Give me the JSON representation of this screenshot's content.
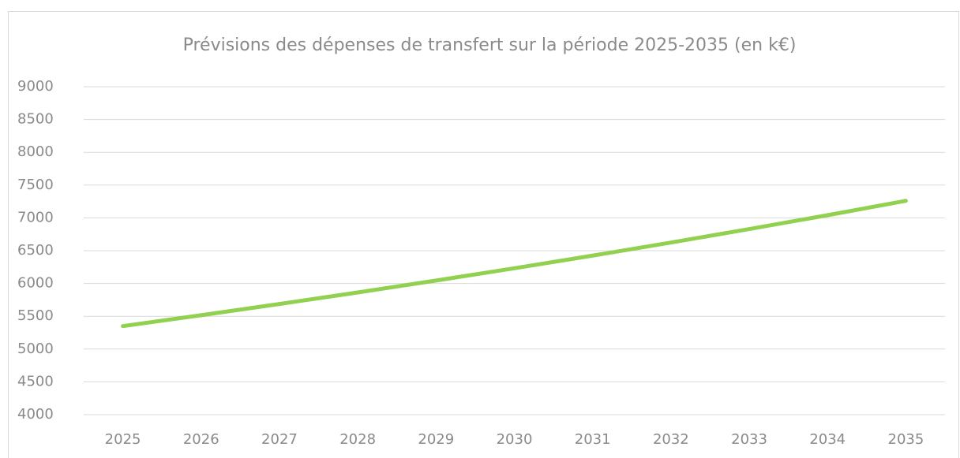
{
  "chart_data": {
    "type": "line",
    "title": "Prévisions des dépenses de transfert sur la période 2025-2035 (en k€)",
    "categories": [
      "2025",
      "2026",
      "2027",
      "2028",
      "2029",
      "2030",
      "2031",
      "2032",
      "2033",
      "2034",
      "2035"
    ],
    "series": [
      {
        "name": "Dépenses de transfert",
        "color": "#92d050",
        "values": [
          5350,
          5516,
          5687,
          5863,
          6045,
          6232,
          6425,
          6624,
          6830,
          7041,
          7260
        ]
      }
    ],
    "ylim": [
      4000,
      9000
    ],
    "yticks": [
      4000,
      4500,
      5000,
      5500,
      6000,
      6500,
      7000,
      7500,
      8000,
      8500,
      9000
    ],
    "grid": true
  }
}
